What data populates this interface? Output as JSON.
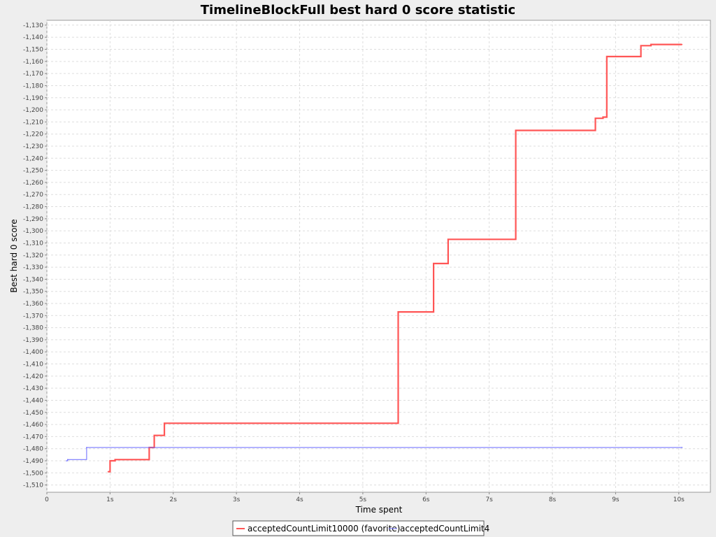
{
  "chart_data": {
    "type": "line",
    "title": "TimelineBlockFull best hard 0 score statistic",
    "xlabel": "Time spent",
    "ylabel": "Best hard 0 score",
    "xlim": [
      0,
      10.5
    ],
    "ylim": [
      -1516,
      -1126
    ],
    "x_ticks": [
      {
        "value": 0,
        "label": "0"
      },
      {
        "value": 1,
        "label": "1s"
      },
      {
        "value": 2,
        "label": "2s"
      },
      {
        "value": 3,
        "label": "3s"
      },
      {
        "value": 4,
        "label": "4s"
      },
      {
        "value": 5,
        "label": "5s"
      },
      {
        "value": 6,
        "label": "6s"
      },
      {
        "value": 7,
        "label": "7s"
      },
      {
        "value": 8,
        "label": "8s"
      },
      {
        "value": 9,
        "label": "9s"
      },
      {
        "value": 10,
        "label": "10s"
      }
    ],
    "y_ticks": [
      {
        "value": -1130,
        "label": "-1,130"
      },
      {
        "value": -1140,
        "label": "-1,140"
      },
      {
        "value": -1150,
        "label": "-1,150"
      },
      {
        "value": -1160,
        "label": "-1,160"
      },
      {
        "value": -1170,
        "label": "-1,170"
      },
      {
        "value": -1180,
        "label": "-1,180"
      },
      {
        "value": -1190,
        "label": "-1,190"
      },
      {
        "value": -1200,
        "label": "-1,200"
      },
      {
        "value": -1210,
        "label": "-1,210"
      },
      {
        "value": -1220,
        "label": "-1,220"
      },
      {
        "value": -1230,
        "label": "-1,230"
      },
      {
        "value": -1240,
        "label": "-1,240"
      },
      {
        "value": -1250,
        "label": "-1,250"
      },
      {
        "value": -1260,
        "label": "-1,260"
      },
      {
        "value": -1270,
        "label": "-1,270"
      },
      {
        "value": -1280,
        "label": "-1,280"
      },
      {
        "value": -1290,
        "label": "-1,290"
      },
      {
        "value": -1300,
        "label": "-1,300"
      },
      {
        "value": -1310,
        "label": "-1,310"
      },
      {
        "value": -1320,
        "label": "-1,320"
      },
      {
        "value": -1330,
        "label": "-1,330"
      },
      {
        "value": -1340,
        "label": "-1,340"
      },
      {
        "value": -1350,
        "label": "-1,350"
      },
      {
        "value": -1360,
        "label": "-1,360"
      },
      {
        "value": -1370,
        "label": "-1,370"
      },
      {
        "value": -1380,
        "label": "-1,380"
      },
      {
        "value": -1390,
        "label": "-1,390"
      },
      {
        "value": -1400,
        "label": "-1,400"
      },
      {
        "value": -1410,
        "label": "-1,410"
      },
      {
        "value": -1420,
        "label": "-1,420"
      },
      {
        "value": -1430,
        "label": "-1,430"
      },
      {
        "value": -1440,
        "label": "-1,440"
      },
      {
        "value": -1450,
        "label": "-1,450"
      },
      {
        "value": -1460,
        "label": "-1,460"
      },
      {
        "value": -1470,
        "label": "-1,470"
      },
      {
        "value": -1480,
        "label": "-1,480"
      },
      {
        "value": -1490,
        "label": "-1,490"
      },
      {
        "value": -1500,
        "label": "-1,500"
      },
      {
        "value": -1510,
        "label": "-1,510"
      }
    ],
    "grid": true,
    "legend_position": "bottom",
    "step": true,
    "series": [
      {
        "name": "acceptedCountLimit10000 (favorite)",
        "color": "#ff5555",
        "line_width": "thick",
        "points": [
          [
            0.97,
            -1499
          ],
          [
            1.0,
            -1490
          ],
          [
            1.08,
            -1489
          ],
          [
            1.62,
            -1479
          ],
          [
            1.7,
            -1469
          ],
          [
            1.86,
            -1459
          ],
          [
            5.56,
            -1367
          ],
          [
            6.12,
            -1327
          ],
          [
            6.35,
            -1307
          ],
          [
            7.42,
            -1217
          ],
          [
            8.68,
            -1207
          ],
          [
            8.8,
            -1206
          ],
          [
            8.86,
            -1156
          ],
          [
            9.4,
            -1147
          ],
          [
            9.56,
            -1146
          ],
          [
            10.05,
            -1146
          ]
        ]
      },
      {
        "name": "acceptedCountLimit4",
        "color": "#6666ff",
        "line_width": "thin",
        "points": [
          [
            0.31,
            -1490
          ],
          [
            0.33,
            -1489
          ],
          [
            0.63,
            -1479
          ],
          [
            10.05,
            -1479
          ]
        ]
      }
    ]
  }
}
